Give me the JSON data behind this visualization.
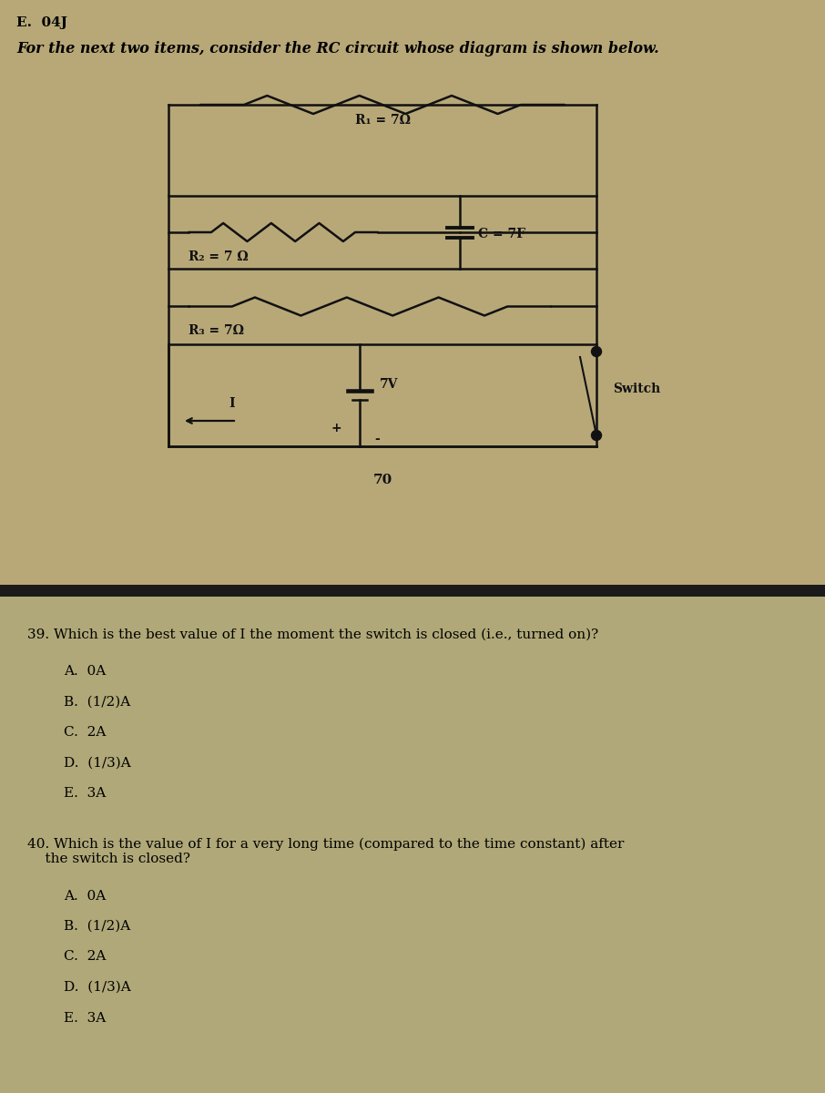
{
  "header": "E.  04J",
  "intro": "For the next two items, consider the RC circuit whose diagram is shown below.",
  "circuit_note": "70",
  "R1_label": "R₁ = 7Ω",
  "R2_label": "R₂ = 7 Ω",
  "R3_label": "R₃ = 7Ω",
  "C_label": "C = 7F",
  "V_label": "7V",
  "switch_label": "Switch",
  "I_label": "I",
  "plus_label": "+",
  "minus_label": "-",
  "bg_upper": "#b8a878",
  "bg_lower": "#b0a878",
  "separator_color": "#1a1a1a",
  "wire_color": "#111111",
  "text_color": "#000000",
  "q39_text": "39. Which is the best value of I the moment the switch is closed (i.e., turned on)?",
  "q39_choices": [
    "A.  0A",
    "B.  (1/2)A",
    "C.  2A",
    "D.  (1/3)A",
    "E.  3A"
  ],
  "q40_text": "40. Which is the value of I for a very long time (compared to the time constant) after\n    the switch is closed?",
  "q40_choices": [
    "A.  0A",
    "B.  (1/2)A",
    "C.  2A",
    "D.  (1/3)A",
    "E.  3A"
  ]
}
